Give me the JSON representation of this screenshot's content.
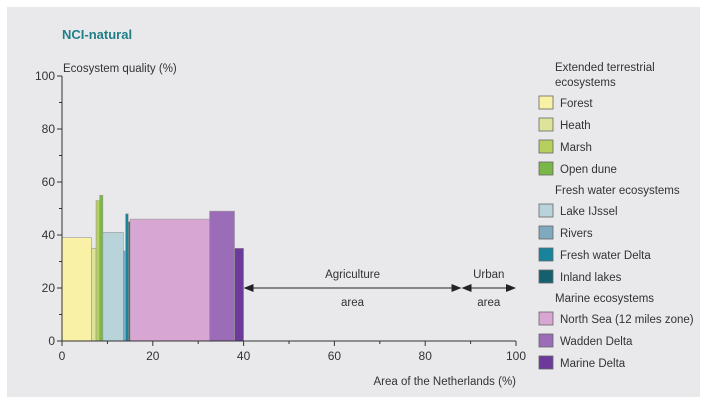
{
  "chart_data": {
    "type": "bar",
    "title": "NCI-natural",
    "ylabel": "Ecosystem quality (%)",
    "xlabel": "Area of the Netherlands (%)",
    "xlim": [
      0,
      100
    ],
    "ylim": [
      0,
      100
    ],
    "xticks": [
      0,
      20,
      40,
      60,
      80,
      100
    ],
    "yticks": [
      0,
      20,
      40,
      60,
      80,
      100
    ],
    "bars": [
      {
        "name": "Forest",
        "x0": 0,
        "x1": 6.5,
        "value": 39,
        "color": "#f8f1a6"
      },
      {
        "name": "Heath",
        "x0": 6.5,
        "x1": 7.5,
        "value": 35,
        "color": "#dde49a"
      },
      {
        "name": "Marsh",
        "x0": 7.5,
        "x1": 8.3,
        "value": 53,
        "color": "#b7cf5c"
      },
      {
        "name": "Open dune",
        "x0": 8.3,
        "x1": 9.0,
        "value": 55,
        "color": "#7ab648"
      },
      {
        "name": "Lake IJssel",
        "x0": 9.0,
        "x1": 13.5,
        "value": 41,
        "color": "#b9d3da"
      },
      {
        "name": "Rivers",
        "x0": 13.5,
        "x1": 14.0,
        "value": 34,
        "color": "#7fa9be"
      },
      {
        "name": "Fresh water Delta",
        "x0": 14.0,
        "x1": 14.6,
        "value": 48,
        "color": "#17849c"
      },
      {
        "name": "Inland lakes",
        "x0": 14.6,
        "x1": 15.0,
        "value": 45,
        "color": "#15606f"
      },
      {
        "name": "North Sea (12 miles zone)",
        "x0": 15.0,
        "x1": 32.5,
        "value": 46,
        "color": "#d7a6d2"
      },
      {
        "name": "Wadden Delta",
        "x0": 32.5,
        "x1": 38.0,
        "value": 49,
        "color": "#9b6cb8"
      },
      {
        "name": "Marine Delta",
        "x0": 38.0,
        "x1": 40.0,
        "value": 35,
        "color": "#6b3a9a"
      }
    ],
    "annotations": [
      {
        "line1": "Agriculture",
        "line2": "area",
        "x0": 40,
        "x1": 88
      },
      {
        "line1": "Urban",
        "line2": "area",
        "x0": 88,
        "x1": 100
      }
    ],
    "legend": {
      "placement": "right",
      "groups": [
        {
          "title": "Extended terrestrial ecosystems",
          "items": [
            {
              "label": "Forest",
              "color": "#f8f1a6"
            },
            {
              "label": "Heath",
              "color": "#dde49a"
            },
            {
              "label": "Marsh",
              "color": "#b7cf5c"
            },
            {
              "label": "Open dune",
              "color": "#7ab648"
            }
          ]
        },
        {
          "title": "Fresh water ecosystems",
          "items": [
            {
              "label": "Lake IJssel",
              "color": "#b9d3da"
            },
            {
              "label": "Rivers",
              "color": "#7fa9be"
            },
            {
              "label": "Fresh water Delta",
              "color": "#17849c"
            },
            {
              "label": "Inland lakes",
              "color": "#15606f"
            }
          ]
        },
        {
          "title": "Marine ecosystems",
          "items": [
            {
              "label": "North Sea (12 miles zone)",
              "color": "#d7a6d2"
            },
            {
              "label": "Wadden Delta",
              "color": "#9b6cb8"
            },
            {
              "label": "Marine Delta",
              "color": "#6b3a9a"
            }
          ]
        }
      ]
    }
  }
}
